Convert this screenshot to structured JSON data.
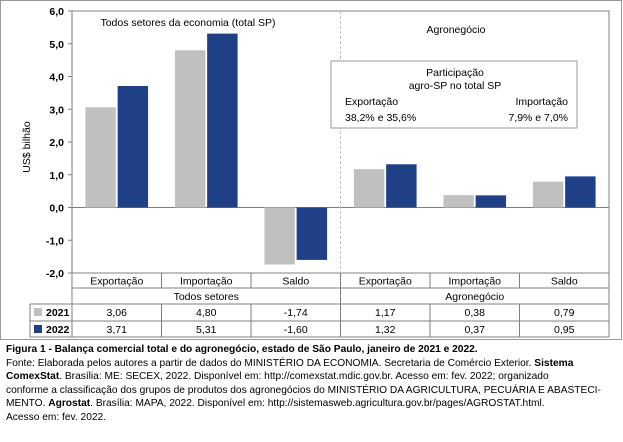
{
  "chart_data": {
    "type": "bar",
    "ylabel": "US$ bilhão",
    "ylim": [
      -2.0,
      6.0
    ],
    "yticks": [
      "6,0",
      "5,0",
      "4,0",
      "3,0",
      "2,0",
      "1,0",
      "0,0",
      "-1,0",
      "-2,0"
    ],
    "groups": [
      {
        "label": "Todos setores",
        "panel_title": "Todos setores da economia (total SP)"
      },
      {
        "label": "Agronegócio",
        "panel_title": "Agronegócio"
      }
    ],
    "categories": [
      "Exportação",
      "Importação",
      "Saldo",
      "Exportação",
      "Importação",
      "Saldo"
    ],
    "series": [
      {
        "name": "2021",
        "color": "#c0c0c0",
        "values": [
          3.06,
          4.8,
          -1.74,
          1.17,
          0.38,
          0.79
        ],
        "labels": [
          "3,06",
          "4,80",
          "-1,74",
          "1,17",
          "0,38",
          "0,79"
        ]
      },
      {
        "name": "2022",
        "color": "#1f3f87",
        "values": [
          3.71,
          5.31,
          -1.6,
          1.32,
          0.37,
          0.95
        ],
        "labels": [
          "3,71",
          "5,31",
          "-1,60",
          "1,32",
          "0,37",
          "0,95"
        ]
      }
    ],
    "annotation": {
      "title_line1": "Participação",
      "title_line2": "agro-SP no total SP",
      "left_label": "Exportação",
      "left_value": "38,2% e 35,6%",
      "right_label": "Importação",
      "right_value": "7,9% e 7,0%"
    }
  },
  "caption": {
    "line1": "Figura 1 - Balança comercial total e do agronegócio, estado de São Paulo, janeiro de 2021 e 2022.",
    "line2_a": "Fonte: Elaborada pelos autores a partir de dados do MINISTÉRIO DA ECONOMIA. Secretaria de Comércio Exterior. ",
    "line2_b": "Sistema",
    "line3_a": "ComexStat",
    "line3_b": ". Brasília: ME: SECEX, 2022. Disponível em: http://comexstat.mdic.gov.br. Acesso em: fev. 2022; organizado",
    "line4": "conforme a classificação dos grupos de produtos dos agronegócios do MINISTÉRIO DA AGRICULTURA, PECUÁRIA E ABASTECI-",
    "line5_a": "MENTO. ",
    "line5_b": "Agrostat",
    "line5_c": ". Brasília: MAPA, 2022. Disponível em: http://sistemasweb.agricultura.gov.br/pages/AGROSTAT.html.",
    "line6": "Acesso em: fev. 2022."
  }
}
